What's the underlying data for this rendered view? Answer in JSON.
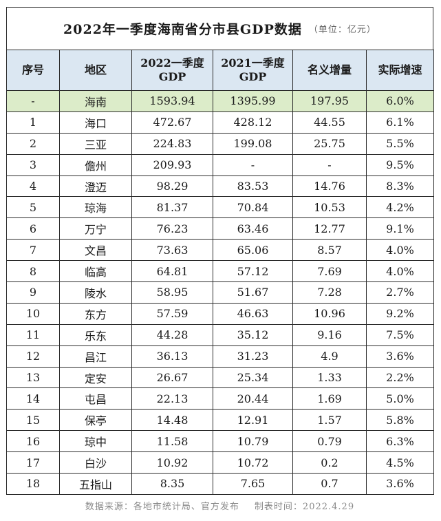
{
  "title": "2022年一季度海南省分市县GDP数据",
  "unit_note": "（单位：亿元）",
  "headers": {
    "index": "序号",
    "region": "地区",
    "gdp2022_l1": "2022一季度",
    "gdp2022_l2": "GDP",
    "gdp2021_l1": "2021一季度",
    "gdp2021_l2": "GDP",
    "nominal": "名义增量",
    "real": "实际增速"
  },
  "rows": [
    {
      "index": "-",
      "region": "海南",
      "gdp2022": "1593.94",
      "gdp2021": "1395.99",
      "nominal": "197.95",
      "real": "6.0%"
    },
    {
      "index": "1",
      "region": "海口",
      "gdp2022": "472.67",
      "gdp2021": "428.12",
      "nominal": "44.55",
      "real": "6.1%"
    },
    {
      "index": "2",
      "region": "三亚",
      "gdp2022": "224.83",
      "gdp2021": "199.08",
      "nominal": "25.75",
      "real": "5.5%"
    },
    {
      "index": "3",
      "region": "儋州",
      "gdp2022": "209.93",
      "gdp2021": "-",
      "nominal": "-",
      "real": "9.5%"
    },
    {
      "index": "4",
      "region": "澄迈",
      "gdp2022": "98.29",
      "gdp2021": "83.53",
      "nominal": "14.76",
      "real": "8.3%"
    },
    {
      "index": "5",
      "region": "琼海",
      "gdp2022": "81.37",
      "gdp2021": "70.84",
      "nominal": "10.53",
      "real": "4.2%"
    },
    {
      "index": "6",
      "region": "万宁",
      "gdp2022": "76.23",
      "gdp2021": "63.46",
      "nominal": "12.77",
      "real": "9.1%"
    },
    {
      "index": "7",
      "region": "文昌",
      "gdp2022": "73.63",
      "gdp2021": "65.06",
      "nominal": "8.57",
      "real": "4.0%"
    },
    {
      "index": "8",
      "region": "临高",
      "gdp2022": "64.81",
      "gdp2021": "57.12",
      "nominal": "7.69",
      "real": "4.0%"
    },
    {
      "index": "9",
      "region": "陵水",
      "gdp2022": "58.95",
      "gdp2021": "51.67",
      "nominal": "7.28",
      "real": "2.7%"
    },
    {
      "index": "10",
      "region": "东方",
      "gdp2022": "57.59",
      "gdp2021": "46.63",
      "nominal": "10.96",
      "real": "9.2%"
    },
    {
      "index": "11",
      "region": "乐东",
      "gdp2022": "44.28",
      "gdp2021": "35.12",
      "nominal": "9.16",
      "real": "7.5%"
    },
    {
      "index": "12",
      "region": "昌江",
      "gdp2022": "36.13",
      "gdp2021": "31.23",
      "nominal": "4.9",
      "real": "3.6%"
    },
    {
      "index": "13",
      "region": "定安",
      "gdp2022": "26.67",
      "gdp2021": "25.34",
      "nominal": "1.33",
      "real": "2.2%"
    },
    {
      "index": "14",
      "region": "屯昌",
      "gdp2022": "22.13",
      "gdp2021": "20.44",
      "nominal": "1.69",
      "real": "5.0%"
    },
    {
      "index": "15",
      "region": "保亭",
      "gdp2022": "14.48",
      "gdp2021": "12.91",
      "nominal": "1.57",
      "real": "5.8%"
    },
    {
      "index": "16",
      "region": "琼中",
      "gdp2022": "11.58",
      "gdp2021": "10.79",
      "nominal": "0.79",
      "real": "6.3%"
    },
    {
      "index": "17",
      "region": "白沙",
      "gdp2022": "10.92",
      "gdp2021": "10.72",
      "nominal": "0.2",
      "real": "4.5%"
    },
    {
      "index": "18",
      "region": "五指山",
      "gdp2022": "8.35",
      "gdp2021": "7.65",
      "nominal": "0.7",
      "real": "3.6%"
    }
  ],
  "footer": {
    "source": "数据来源：各地市统计局、官方发布",
    "date": "制表时间：2022.4.29"
  }
}
